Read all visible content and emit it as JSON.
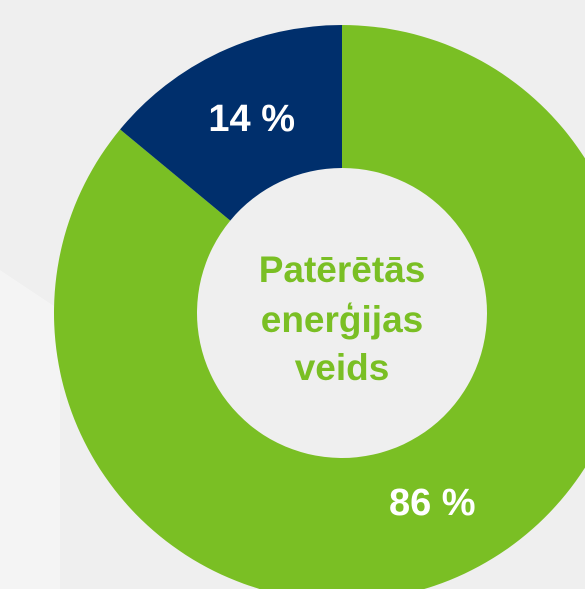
{
  "chart_data": {
    "type": "donut",
    "center_label": [
      "Patērētās",
      "enerģijas",
      "veids"
    ],
    "categories": [
      null,
      null
    ],
    "values": [
      86,
      14
    ],
    "value_labels": [
      "86 %",
      "14 %"
    ],
    "colors": [
      "#7abf24",
      "#002f6c"
    ]
  }
}
